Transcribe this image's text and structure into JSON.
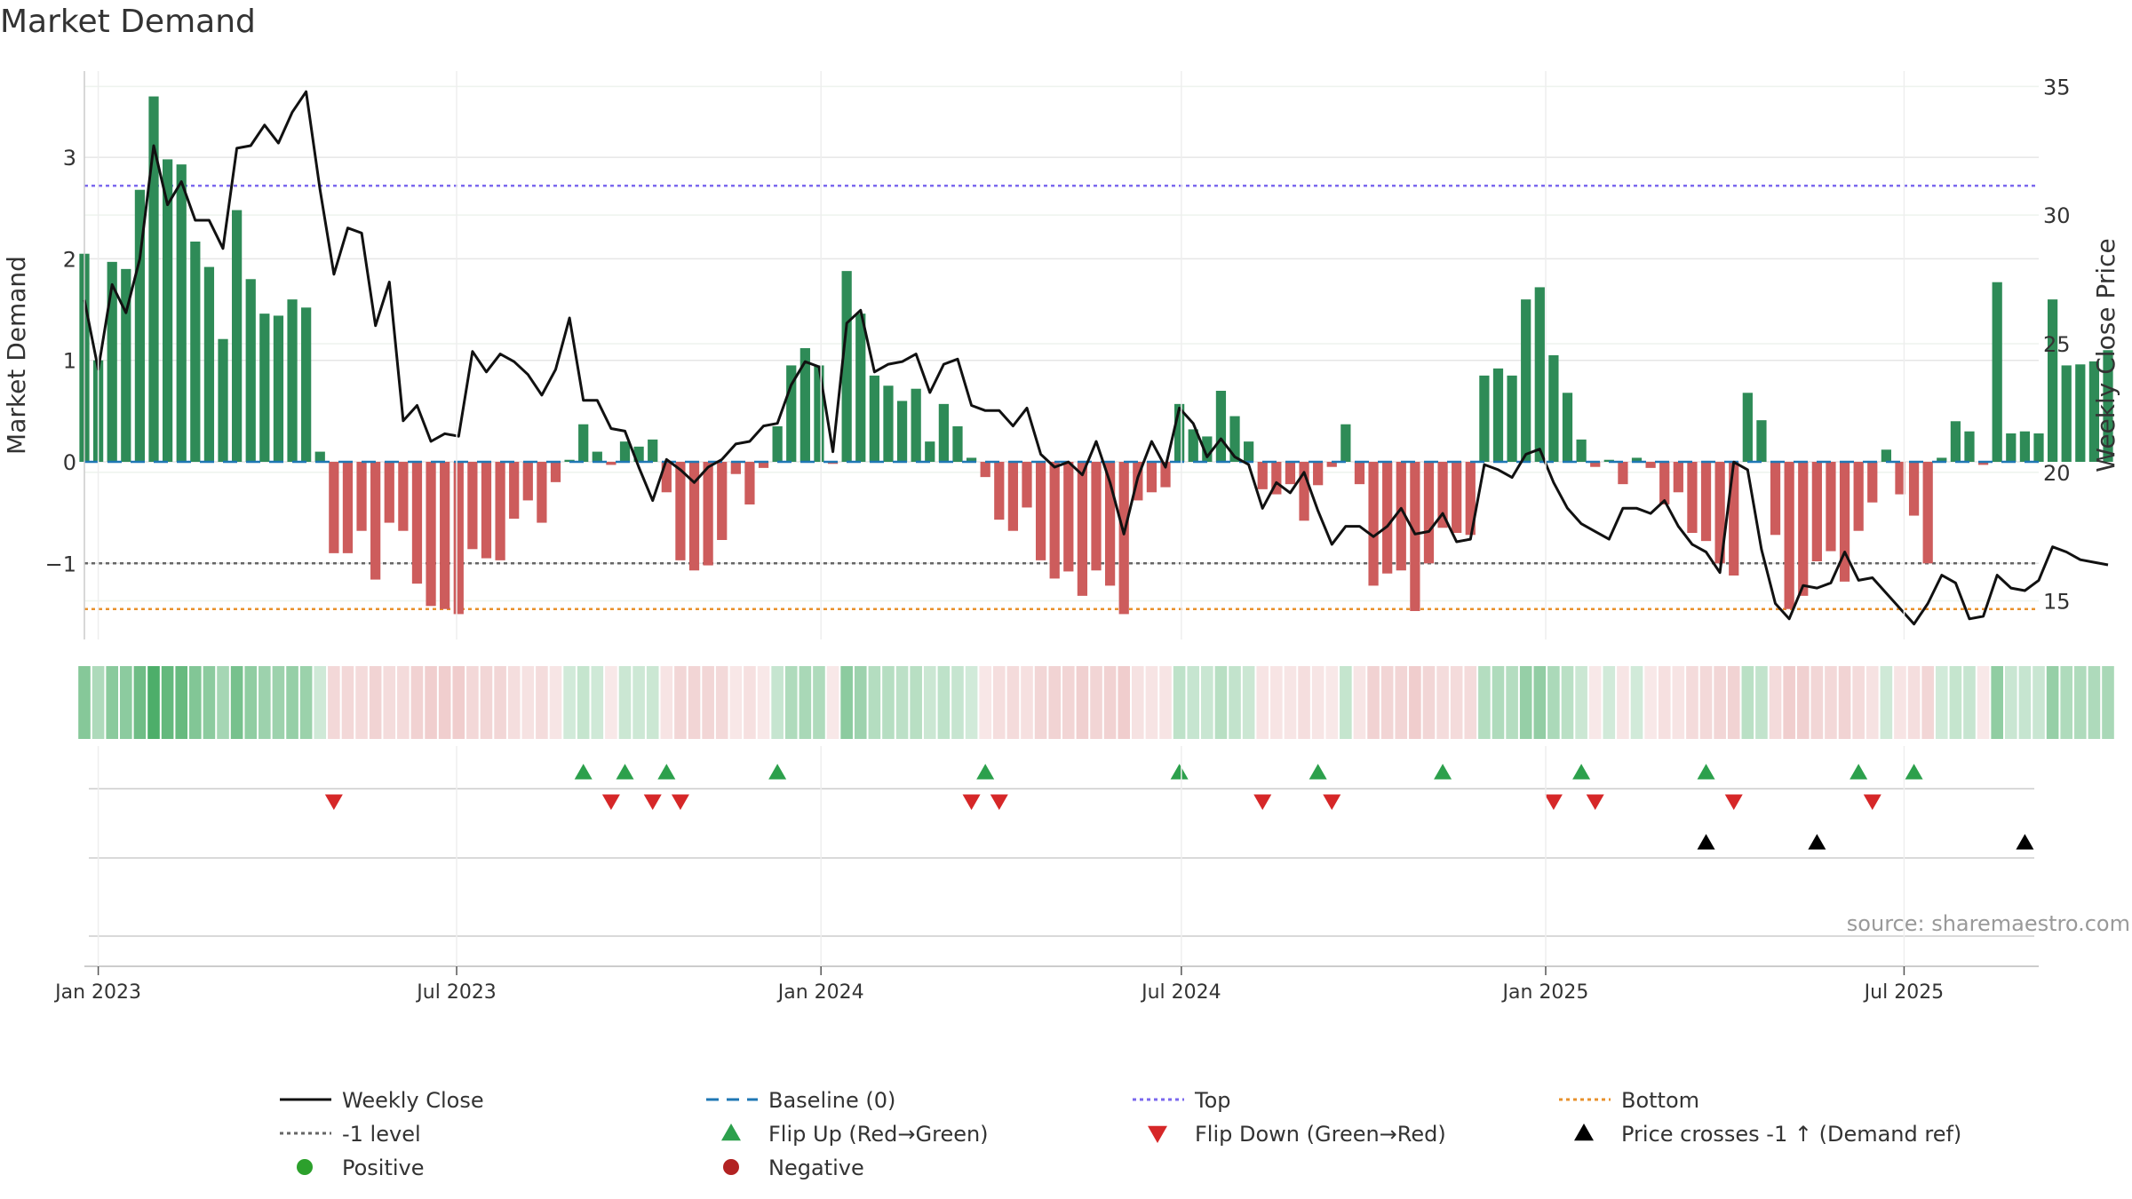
{
  "chart_data": {
    "type": "bar",
    "title": "Market Demand",
    "ylabel_left": "Market Demand",
    "ylabel_right": "Weekly Close Price",
    "source_note": "source: sharemaestro.com",
    "ylim_left": [
      -1.75,
      3.85
    ],
    "ylim_right": [
      13.5,
      35.6
    ],
    "yticks_left": [
      -1,
      0,
      1,
      2,
      3
    ],
    "ytick_labels_left": [
      "−1",
      "0",
      "1",
      "2",
      "3"
    ],
    "yticks_right": [
      15,
      20,
      25,
      30,
      35
    ],
    "ytick_labels_right": [
      "15",
      "20",
      "25",
      "30",
      "35"
    ],
    "x_start_date": "2022-12-25",
    "x_end_date": "2025-09-07",
    "xticks": [
      "2023-01-01",
      "2023-07-01",
      "2024-01-01",
      "2024-07-01",
      "2025-01-01",
      "2025-07-01"
    ],
    "xtick_labels": [
      "Jan 2023",
      "Jul 2023",
      "Jan 2024",
      "Jul 2024",
      "Jan 2025",
      "Jul 2025"
    ],
    "weeks_start": "2022-12-25",
    "levels": {
      "top": 2.72,
      "minus_one": -1.0,
      "bottom": -1.45,
      "baseline": 0
    },
    "demand": [
      2.05,
      1.0,
      1.97,
      1.9,
      2.68,
      3.6,
      2.98,
      2.93,
      2.17,
      1.92,
      1.21,
      2.48,
      1.8,
      1.46,
      1.44,
      1.6,
      1.52,
      0.1,
      -0.9,
      -0.9,
      -0.68,
      -1.16,
      -0.6,
      -0.68,
      -1.2,
      -1.42,
      -1.45,
      -1.5,
      -0.86,
      -0.95,
      -0.97,
      -0.56,
      -0.38,
      -0.6,
      -0.2,
      0.02,
      0.37,
      0.1,
      -0.03,
      0.2,
      0.15,
      0.22,
      -0.3,
      -0.97,
      -1.07,
      -1.02,
      -0.77,
      -0.12,
      -0.42,
      -0.06,
      0.35,
      0.95,
      1.12,
      0.95,
      -0.02,
      1.88,
      1.46,
      0.85,
      0.75,
      0.6,
      0.72,
      0.2,
      0.57,
      0.35,
      0.04,
      -0.15,
      -0.57,
      -0.68,
      -0.45,
      -0.97,
      -1.15,
      -1.08,
      -1.32,
      -1.07,
      -1.22,
      -1.5,
      -0.38,
      -0.3,
      -0.25,
      0.57,
      0.32,
      0.25,
      0.7,
      0.45,
      0.2,
      -0.27,
      -0.32,
      -0.22,
      -0.58,
      -0.23,
      -0.05,
      0.37,
      -0.22,
      -1.22,
      -1.1,
      -1.07,
      -1.47,
      -1.0,
      -0.65,
      -0.7,
      -0.72,
      0.85,
      0.92,
      0.85,
      1.6,
      1.72,
      1.05,
      0.68,
      0.22,
      -0.05,
      0.02,
      -0.22,
      0.04,
      -0.06,
      -0.42,
      -0.3,
      -0.7,
      -0.78,
      -1.0,
      -1.12,
      0.68,
      0.41,
      -0.72,
      -1.45,
      -1.32,
      -0.98,
      -0.88,
      -1.18,
      -0.68,
      -0.4,
      0.12,
      -0.32,
      -0.53,
      -1.0,
      0.04,
      0.4,
      0.3,
      -0.03,
      1.77,
      0.28,
      0.3,
      0.28,
      1.6,
      0.95,
      0.96,
      0.99,
      1.1
    ],
    "close": [
      26.7,
      24.0,
      27.3,
      26.2,
      28.3,
      32.7,
      30.4,
      31.3,
      29.8,
      29.8,
      28.7,
      32.6,
      32.7,
      33.5,
      32.8,
      34.0,
      34.8,
      31.0,
      27.7,
      29.5,
      29.3,
      25.7,
      27.4,
      22.0,
      22.6,
      21.2,
      21.5,
      21.4,
      24.7,
      23.9,
      24.6,
      24.3,
      23.8,
      23.0,
      24.0,
      26.0,
      22.8,
      22.8,
      21.7,
      21.6,
      20.2,
      18.9,
      20.5,
      20.1,
      19.6,
      20.2,
      20.5,
      21.1,
      21.2,
      21.8,
      21.9,
      23.4,
      24.3,
      24.1,
      20.8,
      25.8,
      26.3,
      23.9,
      24.2,
      24.3,
      24.6,
      23.1,
      24.2,
      24.4,
      22.6,
      22.4,
      22.4,
      21.8,
      22.5,
      20.7,
      20.2,
      20.4,
      19.9,
      21.2,
      19.6,
      17.6,
      19.8,
      21.2,
      20.2,
      22.5,
      21.9,
      20.6,
      21.3,
      20.6,
      20.3,
      18.6,
      19.6,
      19.2,
      20.0,
      18.5,
      17.2,
      17.9,
      17.9,
      17.5,
      17.9,
      18.6,
      17.6,
      17.7,
      18.4,
      17.3,
      17.4,
      20.3,
      20.1,
      19.8,
      20.7,
      20.9,
      19.6,
      18.6,
      18.0,
      17.7,
      17.4,
      18.6,
      18.6,
      18.4,
      18.9,
      17.9,
      17.2,
      16.9,
      16.1,
      20.4,
      20.1,
      17.0,
      14.9,
      14.3,
      15.6,
      15.5,
      15.7,
      16.9,
      15.8,
      15.9,
      15.3,
      14.7,
      14.1,
      14.9,
      16.0,
      15.7,
      14.3,
      14.4,
      16.0,
      15.5,
      15.4,
      15.8,
      17.1,
      16.9,
      16.6,
      16.5,
      16.4
    ],
    "flip_up_weeks": [
      36,
      39,
      42,
      50,
      65,
      79,
      89,
      98,
      108,
      117,
      128,
      132
    ],
    "flip_down_weeks": [
      18,
      38,
      41,
      43,
      64,
      66,
      85,
      90,
      106,
      109,
      119,
      129
    ],
    "price_cross_weeks": [
      117,
      125,
      140
    ],
    "legend": [
      {
        "label": "Weekly Close",
        "marker": "line-solid",
        "color": "#111111"
      },
      {
        "label": "Baseline (0)",
        "marker": "line-dashed",
        "color": "#1f77b4"
      },
      {
        "label": "Top",
        "marker": "line-dotted",
        "color": "#7b68ee"
      },
      {
        "label": "Bottom",
        "marker": "line-dotted",
        "color": "#e8912c"
      },
      {
        "label": "-1 level",
        "marker": "line-dotted",
        "color": "#666666"
      },
      {
        "label": "Flip Up (Red→Green)",
        "marker": "triangle-up",
        "color": "#2ca04c"
      },
      {
        "label": "Flip Down (Green→Red)",
        "marker": "triangle-down",
        "color": "#d62728"
      },
      {
        "label": "Price crosses -1 ↑ (Demand ref)",
        "marker": "triangle-up",
        "color": "#000000"
      },
      {
        "label": "Positive",
        "marker": "circle",
        "color": "#2ca02c"
      },
      {
        "label": "Negative",
        "marker": "circle",
        "color": "#b22222"
      }
    ]
  },
  "colors": {
    "positive": "#2e8b57",
    "negative": "#cd5c5c",
    "close_line": "#111111",
    "baseline": "#1f77b4",
    "top": "#7b68ee",
    "bottom": "#e8912c",
    "minus_one": "#666666",
    "flip_up": "#2ca04c",
    "flip_down": "#d62728",
    "cross": "#000000",
    "grid": "#e6e6e6"
  }
}
